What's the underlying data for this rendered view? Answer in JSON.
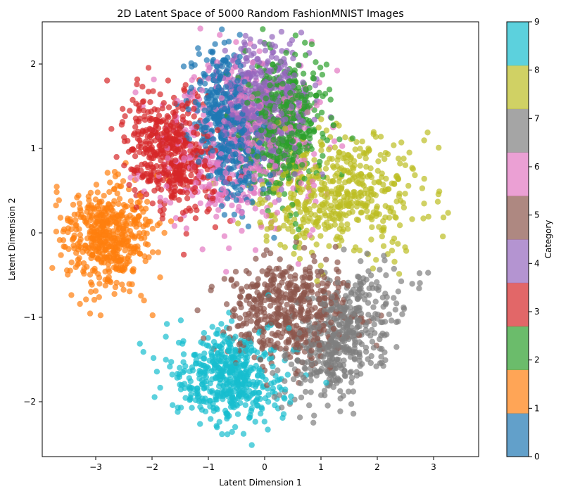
{
  "chart_data": {
    "type": "scatter",
    "title": "2D Latent Space of 5000 Random FashionMNIST Images",
    "xlabel": "Latent Dimension 1",
    "ylabel": "Latent Dimension 2",
    "xlim": [
      -3.95,
      3.8
    ],
    "ylim": [
      -2.65,
      2.5
    ],
    "xticks": [
      -3,
      -2,
      -1,
      0,
      1,
      2,
      3
    ],
    "yticks": [
      -2,
      -1,
      0,
      1,
      2
    ],
    "grid": false,
    "legend": "none",
    "colorbar": {
      "label": "Category",
      "range": [
        0,
        9
      ],
      "ticks": [
        0,
        1,
        2,
        3,
        4,
        5,
        6,
        7,
        8,
        9
      ],
      "colors": [
        "#1f77b4",
        "#ff7f0e",
        "#2ca02c",
        "#d62728",
        "#9467bd",
        "#8c564b",
        "#e377c2",
        "#7f7f7f",
        "#bcbd22",
        "#17becf"
      ]
    },
    "point_alpha": 0.7,
    "total_points": 5000,
    "series": [
      {
        "category": 0,
        "color": "#1f77b4",
        "count": 500,
        "center": [
          -0.7,
          1.25
        ],
        "spread": [
          0.3,
          0.45
        ],
        "corr": -0.4
      },
      {
        "category": 1,
        "color": "#ff7f0e",
        "count": 500,
        "center": [
          -2.8,
          -0.05
        ],
        "spread": [
          0.4,
          0.33
        ],
        "corr": 0.1
      },
      {
        "category": 2,
        "color": "#2ca02c",
        "count": 500,
        "center": [
          0.35,
          1.3
        ],
        "spread": [
          0.35,
          0.42
        ],
        "corr": 0.0
      },
      {
        "category": 3,
        "color": "#d62728",
        "count": 500,
        "center": [
          -1.7,
          0.95
        ],
        "spread": [
          0.4,
          0.36
        ],
        "corr": -0.3
      },
      {
        "category": 4,
        "color": "#9467bd",
        "count": 500,
        "center": [
          0.0,
          1.55
        ],
        "spread": [
          0.38,
          0.38
        ],
        "corr": 0.0
      },
      {
        "category": 5,
        "color": "#8c564b",
        "count": 500,
        "center": [
          0.45,
          -0.95
        ],
        "spread": [
          0.55,
          0.3
        ],
        "corr": 0.0
      },
      {
        "category": 6,
        "color": "#e377c2",
        "count": 500,
        "center": [
          -0.5,
          1.05
        ],
        "spread": [
          0.7,
          0.5
        ],
        "corr": 0.0
      },
      {
        "category": 7,
        "color": "#7f7f7f",
        "count": 500,
        "center": [
          1.35,
          -1.25
        ],
        "spread": [
          0.5,
          0.38
        ],
        "corr": 0.55
      },
      {
        "category": 8,
        "color": "#bcbd22",
        "count": 500,
        "center": [
          1.3,
          0.45
        ],
        "spread": [
          0.7,
          0.35
        ],
        "corr": 0.1
      },
      {
        "category": 9,
        "color": "#17becf",
        "count": 500,
        "center": [
          -0.6,
          -1.7
        ],
        "spread": [
          0.48,
          0.28
        ],
        "corr": 0.0
      }
    ]
  }
}
